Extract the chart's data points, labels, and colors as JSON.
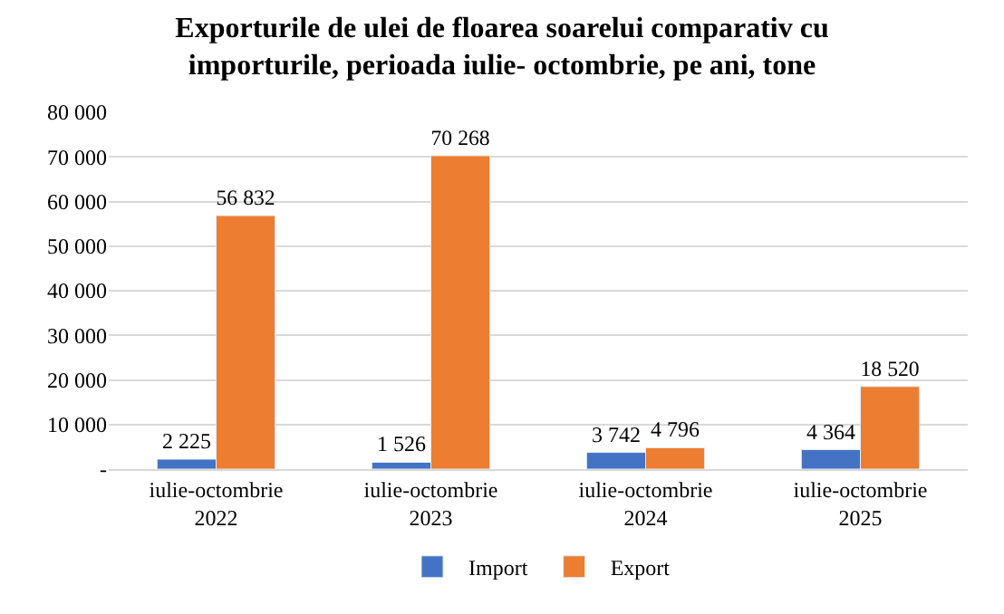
{
  "chart_data": {
    "type": "bar",
    "title": "Exporturile de ulei de floarea soarelui comparativ cu\nimporturile, perioada iulie- octombrie, pe ani, tone",
    "categories": [
      "iulie-octombrie\n2022",
      "iulie-octombrie\n2023",
      "iulie-octombrie\n2024",
      "iulie-octombrie\n2025"
    ],
    "series": [
      {
        "name": "Import",
        "color": "#4472c4",
        "values": [
          2225,
          1526,
          3742,
          4364
        ],
        "value_labels": [
          "2 225",
          "1 526",
          "3 742",
          "4 364"
        ]
      },
      {
        "name": "Export",
        "color": "#ed7d31",
        "values": [
          56832,
          70268,
          4796,
          18520
        ],
        "value_labels": [
          "56 832",
          "70 268",
          "4 796",
          "18 520"
        ]
      }
    ],
    "ylim": [
      0,
      80000
    ],
    "yticks": [
      {
        "value": 0,
        "label": "-"
      },
      {
        "value": 10000,
        "label": "10 000"
      },
      {
        "value": 20000,
        "label": "20 000"
      },
      {
        "value": 30000,
        "label": "30 000"
      },
      {
        "value": 40000,
        "label": "40 000"
      },
      {
        "value": 50000,
        "label": "50 000"
      },
      {
        "value": 60000,
        "label": "60 000"
      },
      {
        "value": 70000,
        "label": "70 000"
      },
      {
        "value": 80000,
        "label": "80 000"
      }
    ],
    "grid": "y",
    "legend": "bottom"
  }
}
